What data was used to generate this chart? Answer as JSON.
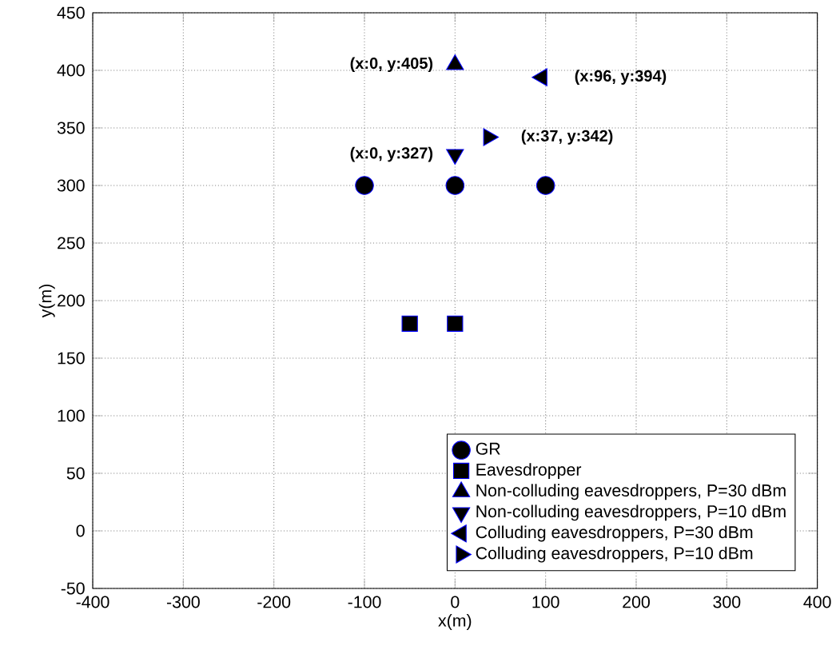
{
  "chart_data": {
    "type": "scatter",
    "xlabel": "x(m)",
    "ylabel": "y(m)",
    "xlim": [
      -400,
      400
    ],
    "ylim": [
      -50,
      450
    ],
    "xticks": [
      -400,
      -300,
      -200,
      -100,
      0,
      100,
      200,
      300,
      400
    ],
    "yticks": [
      -50,
      0,
      50,
      100,
      150,
      200,
      250,
      300,
      350,
      400,
      450
    ],
    "grid": true,
    "legend": "bottom right",
    "series": [
      {
        "name": "GR",
        "marker": "circle",
        "color": "#000000",
        "x": [
          -100,
          0,
          100
        ],
        "values": [
          300,
          300,
          300
        ]
      },
      {
        "name": "Eavesdropper",
        "marker": "square",
        "color": "#000000",
        "x": [
          -50,
          0
        ],
        "values": [
          180,
          180
        ]
      },
      {
        "name": "Non-colluding eavesdroppers, P=30 dBm",
        "marker": "triangle",
        "color": "#000000",
        "x": [
          0
        ],
        "values": [
          405
        ]
      },
      {
        "name": "Non-colluding eavesdroppers, P=10 dBm",
        "marker": "triangle-down",
        "color": "#000000",
        "x": [
          0
        ],
        "values": [
          327
        ]
      },
      {
        "name": "Colluding eavesdroppers, P=30 dBm",
        "marker": "triangle-left",
        "color": "#000000",
        "x": [
          96
        ],
        "values": [
          394
        ]
      },
      {
        "name": "Colluding eavesdroppers, P=10 dBm",
        "marker": "triangle-right",
        "color": "#000000",
        "x": [
          37
        ],
        "values": [
          342
        ]
      }
    ],
    "annotations": [
      {
        "text": "(x:0, y:405)",
        "x": 0,
        "y": 405
      },
      {
        "text": "(x:96, y:394)",
        "x": 96,
        "y": 394
      },
      {
        "text": "(x:37, y:342)",
        "x": 37,
        "y": 342
      },
      {
        "text": "(x:0, y:327)",
        "x": 0,
        "y": 327
      }
    ]
  }
}
